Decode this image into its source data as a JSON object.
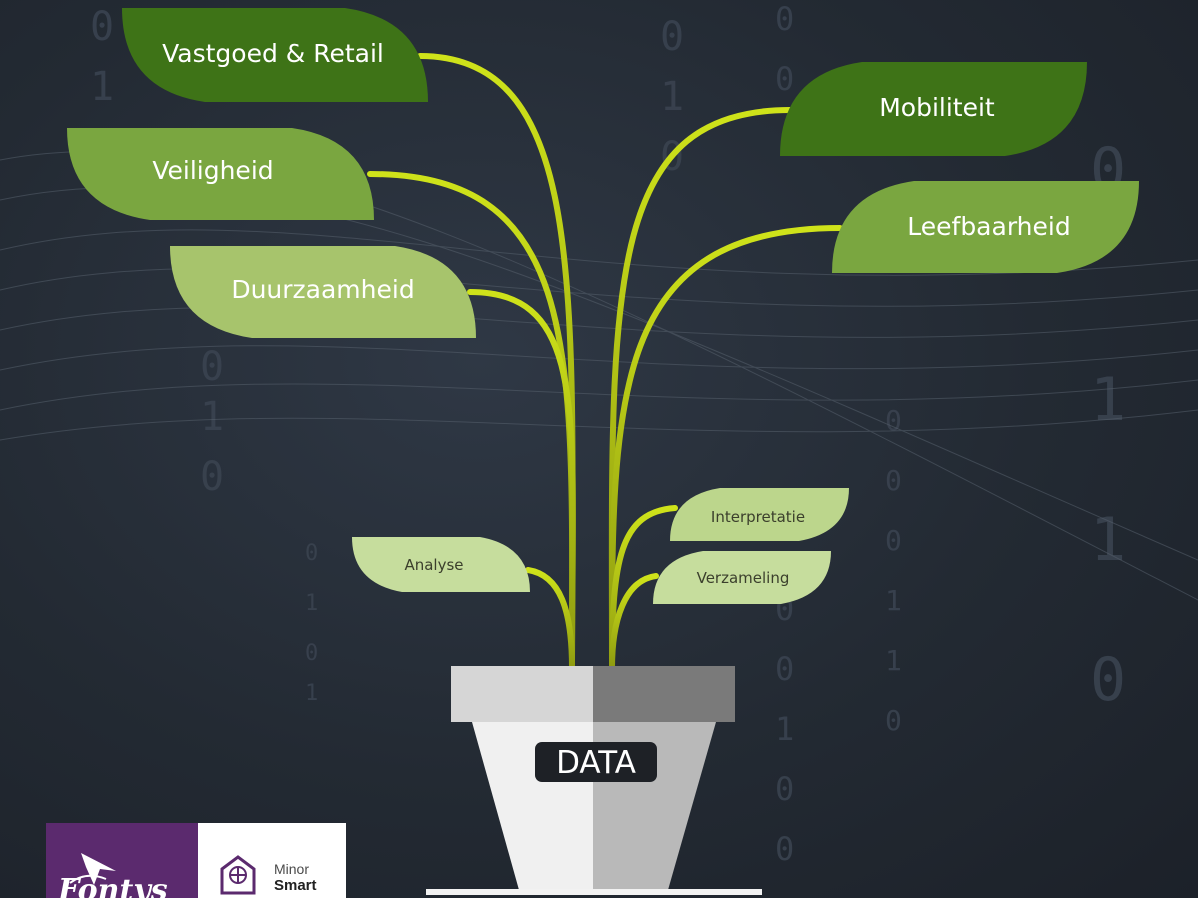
{
  "diagram": {
    "pot_label": "DATA",
    "upper_leaves": [
      {
        "id": "vastgoed",
        "label": "Vastgoed & Retail",
        "color": "#3e7317"
      },
      {
        "id": "veiligheid",
        "label": "Veiligheid",
        "color": "#7aa640"
      },
      {
        "id": "duurzaamheid",
        "label": "Duurzaamheid",
        "color": "#a7c46c"
      },
      {
        "id": "mobiliteit",
        "label": "Mobiliteit",
        "color": "#3e7317"
      },
      {
        "id": "leefbaarheid",
        "label": "Leefbaarheid",
        "color": "#7aa640"
      }
    ],
    "lower_leaves": [
      {
        "id": "analyse",
        "label": "Analyse",
        "color": "#c6dd9d"
      },
      {
        "id": "interpretatie",
        "label": "Interpretatie",
        "color": "#bcd68c"
      },
      {
        "id": "verzameling",
        "label": "Verzameling",
        "color": "#c6dd9d"
      }
    ],
    "stem_color": "#c8de1c"
  },
  "logo": {
    "left_word": "Fontys",
    "right_line1": "Minor",
    "right_line2": "Smart"
  }
}
